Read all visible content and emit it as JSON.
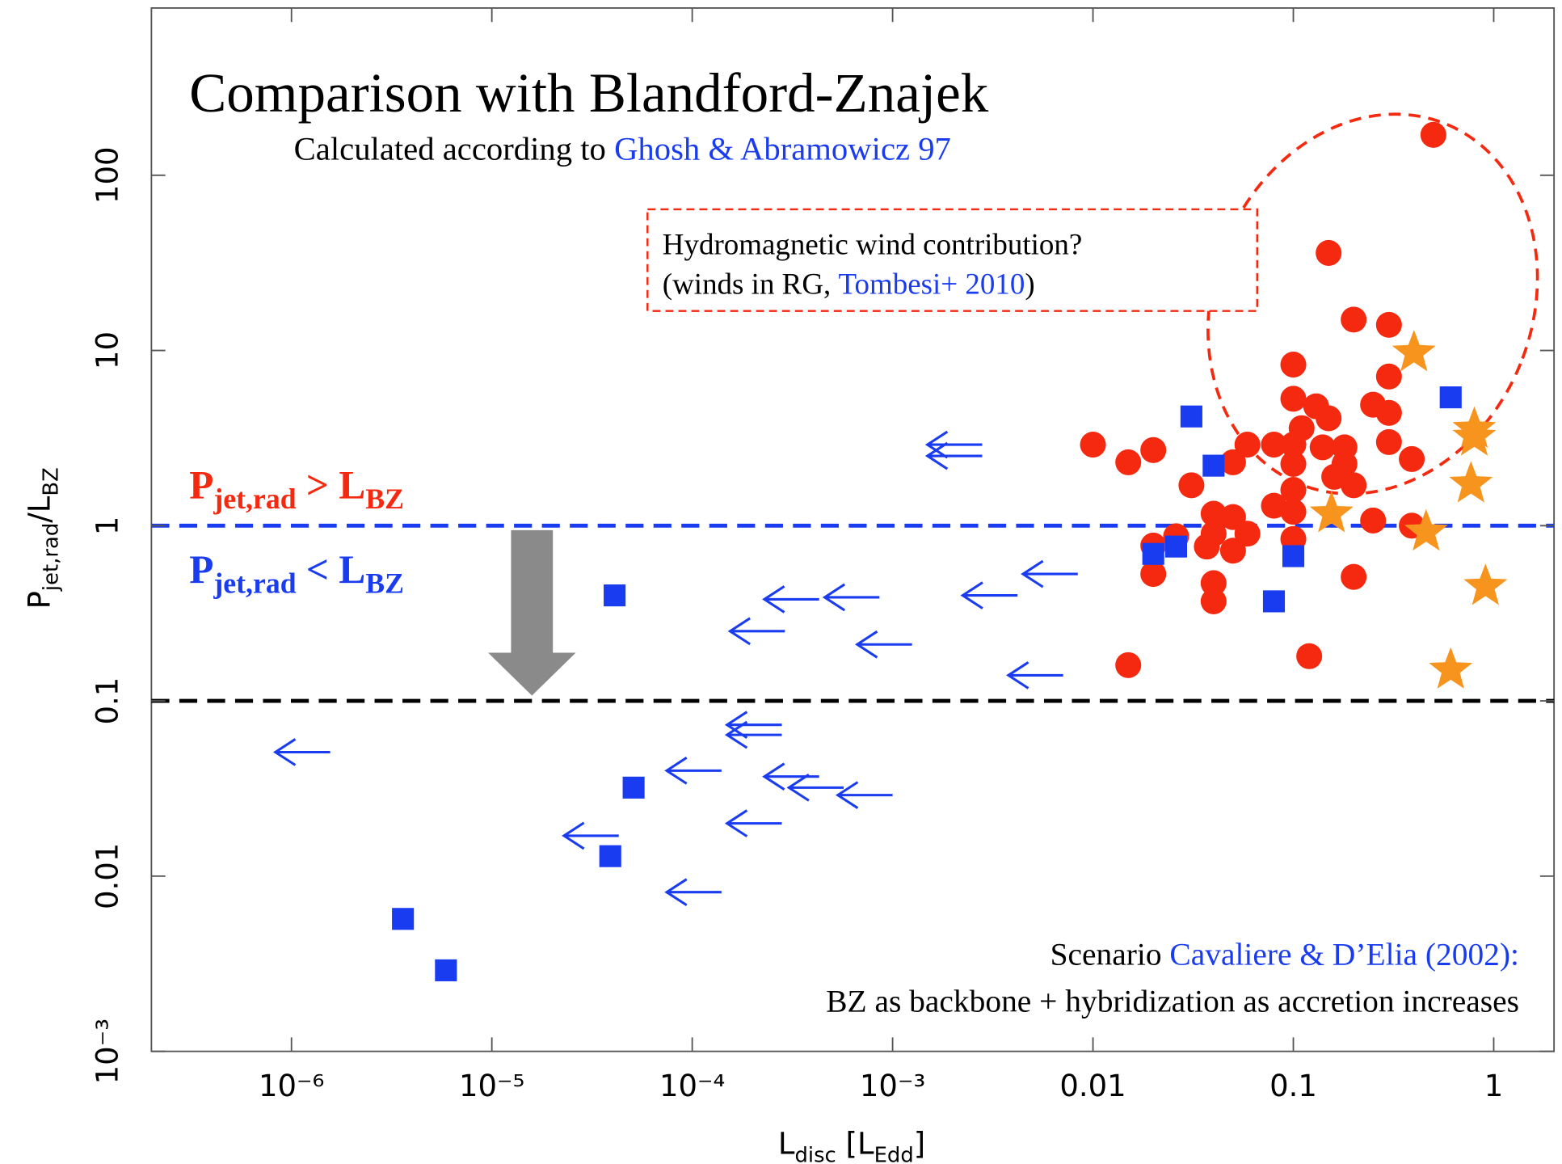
{
  "chart_data": {
    "type": "scatter",
    "title": "Comparison with Blandford-Znajek",
    "subtitle": [
      "Calculated according to ",
      "Ghosh & Abramowicz 97"
    ],
    "box_note": [
      [
        "Hydromagnetic wind contribution?"
      ],
      [
        "(winds in RG, ",
        "Tombesi+ 2010",
        ")"
      ]
    ],
    "region_labels": [
      [
        "P",
        "jet,rad",
        " > L",
        "BZ"
      ],
      [
        "P",
        "jet,rad",
        " < L",
        "BZ"
      ]
    ],
    "scenario_note": [
      [
        "Scenario ",
        "Cavaliere & D’Elia (2002):"
      ],
      [
        "BZ as backbone + hybridization as accretion increases"
      ]
    ],
    "x_label": [
      "L",
      "disc",
      " [L",
      "Edd",
      "]"
    ],
    "y_label": [
      "P",
      "jet,rad",
      "/L",
      "BZ"
    ],
    "xscale": "log",
    "yscale": "log",
    "xlim": [
      2e-07,
      2
    ],
    "ylim": [
      0.001,
      900
    ],
    "xticks": [
      {
        "value": 1e-06,
        "label": "10⁻⁶"
      },
      {
        "value": 1e-05,
        "label": "10⁻⁵"
      },
      {
        "value": 0.0001,
        "label": "10⁻⁴"
      },
      {
        "value": 0.001,
        "label": "10⁻³"
      },
      0.01,
      0.1,
      1
    ],
    "yticks": [
      {
        "value": 0.001,
        "label": "10⁻³"
      },
      0.01,
      0.1,
      1,
      10,
      100
    ],
    "hlines": [
      {
        "y": 1,
        "color": "#1a3cf0"
      },
      {
        "y": 0.1,
        "color": "#000000"
      }
    ],
    "series": [
      {
        "marker": "circle",
        "color": "#f5290f",
        "x": [
          0.5,
          0.15,
          0.2,
          0.3,
          0.1,
          0.3,
          0.1,
          0.13,
          0.15,
          0.25,
          0.3,
          0.11,
          0.01,
          0.015,
          0.02,
          0.059,
          0.08,
          0.1,
          0.14,
          0.18,
          0.3,
          0.39,
          0.05,
          0.1,
          0.18,
          0.16,
          0.2,
          0.031,
          0.1,
          0.08,
          0.1,
          0.04,
          0.05,
          0.25,
          0.39,
          0.04,
          0.059,
          0.026,
          0.02,
          0.037,
          0.05,
          0.1,
          0.02,
          0.2,
          0.04,
          0.04,
          0.12,
          0.015
        ],
        "y": [
          170,
          36,
          15,
          14,
          8.3,
          7.1,
          5.3,
          4.8,
          4.1,
          4.9,
          4.4,
          3.6,
          2.9,
          2.3,
          2.7,
          2.9,
          2.9,
          2.9,
          2.8,
          2.8,
          3.0,
          2.4,
          2.3,
          2.25,
          2.25,
          1.9,
          1.7,
          1.7,
          1.6,
          1.3,
          1.2,
          1.17,
          1.12,
          1.07,
          1.0,
          0.9,
          0.9,
          0.87,
          0.77,
          0.76,
          0.72,
          0.84,
          0.53,
          0.51,
          0.47,
          0.37,
          0.18,
          0.16
        ]
      },
      {
        "marker": "star",
        "color": "#f7941d",
        "x": [
          0.4,
          0.8,
          0.8,
          0.77,
          0.155,
          0.46,
          0.91,
          0.61
        ],
        "y": [
          9.7,
          3.55,
          3.2,
          1.73,
          1.17,
          0.92,
          0.45,
          0.15
        ]
      },
      {
        "marker": "square",
        "color": "#1a3cf0",
        "x": [
          0.031,
          0.04,
          0.61,
          0.02,
          0.026,
          0.1,
          0.08,
          4.1e-05,
          5.1e-05,
          3.9e-05,
          3.6e-06,
          5.9e-06
        ],
        "y": [
          4.2,
          2.2,
          5.4,
          0.69,
          0.76,
          0.67,
          0.37,
          0.4,
          0.032,
          0.013,
          0.0057,
          0.0029
        ]
      },
      {
        "marker": "arrow-left",
        "color": "#1a3cf0",
        "x": [
          0.0028,
          0.0028,
          0.0084,
          0.0042,
          0.00086,
          0.00043,
          0.00029,
          0.00125,
          0.0071,
          1.56e-06,
          0.00028,
          0.00028,
          0.00014,
          0.00043,
          0.00057,
          0.001,
          4.3e-05,
          0.00028,
          0.00014
        ],
        "y": [
          2.9,
          2.5,
          0.53,
          0.4,
          0.39,
          0.38,
          0.25,
          0.21,
          0.14,
          0.051,
          0.073,
          0.064,
          0.04,
          0.037,
          0.032,
          0.029,
          0.017,
          0.02,
          0.0081
        ]
      }
    ]
  }
}
